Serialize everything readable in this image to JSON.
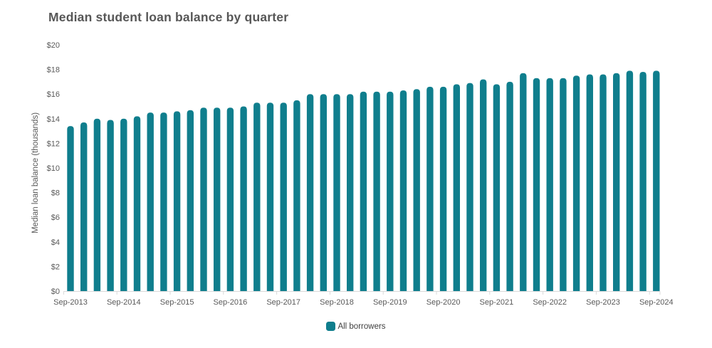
{
  "chart_data": {
    "type": "bar",
    "title": "Median student loan balance by quarter",
    "ylabel": "Median loan balance (thousands)",
    "xlabel": "",
    "y_tick_prefix": "$",
    "ylim": [
      0,
      20
    ],
    "y_tick_step": 2,
    "grid": false,
    "legend_position": "bottom-center",
    "categories": [
      "Sep-2013",
      "Dec-2013",
      "Mar-2014",
      "Jun-2014",
      "Sep-2014",
      "Dec-2014",
      "Mar-2015",
      "Jun-2015",
      "Sep-2015",
      "Dec-2015",
      "Mar-2016",
      "Jun-2016",
      "Sep-2016",
      "Dec-2016",
      "Mar-2017",
      "Jun-2017",
      "Sep-2017",
      "Dec-2017",
      "Mar-2018",
      "Jun-2018",
      "Sep-2018",
      "Dec-2018",
      "Mar-2019",
      "Jun-2019",
      "Sep-2019",
      "Dec-2019",
      "Mar-2020",
      "Jun-2020",
      "Sep-2020",
      "Dec-2020",
      "Mar-2021",
      "Jun-2021",
      "Sep-2021",
      "Dec-2021",
      "Mar-2022",
      "Jun-2022",
      "Sep-2022",
      "Dec-2022",
      "Mar-2023",
      "Jun-2023",
      "Sep-2023",
      "Dec-2023",
      "Mar-2024",
      "Jun-2024",
      "Sep-2024"
    ],
    "x_axis_labels_shown": [
      "Sep-2013",
      "Sep-2014",
      "Sep-2015",
      "Sep-2016",
      "Sep-2017",
      "Sep-2018",
      "Sep-2019",
      "Sep-2020",
      "Sep-2021",
      "Sep-2022",
      "Sep-2023",
      "Sep-2024"
    ],
    "series": [
      {
        "name": "All borrowers",
        "values": [
          13.4,
          13.7,
          14.0,
          13.9,
          14.0,
          14.2,
          14.5,
          14.5,
          14.6,
          14.7,
          14.9,
          14.9,
          14.9,
          15.0,
          15.3,
          15.3,
          15.3,
          15.5,
          16.0,
          16.0,
          16.0,
          16.0,
          16.2,
          16.2,
          16.2,
          16.3,
          16.4,
          16.6,
          16.6,
          16.8,
          16.9,
          17.2,
          16.8,
          17.0,
          17.7,
          17.3,
          17.3,
          17.3,
          17.5,
          17.6,
          17.6,
          17.7,
          17.9,
          17.8,
          17.9
        ]
      }
    ]
  },
  "legend": {
    "label": "All borrowers"
  },
  "colors": {
    "bar": "#0f7e8d",
    "title_text": "#575757",
    "axis_text": "#595959",
    "axis_line": "#d9d9d9",
    "background": "#ffffff"
  }
}
